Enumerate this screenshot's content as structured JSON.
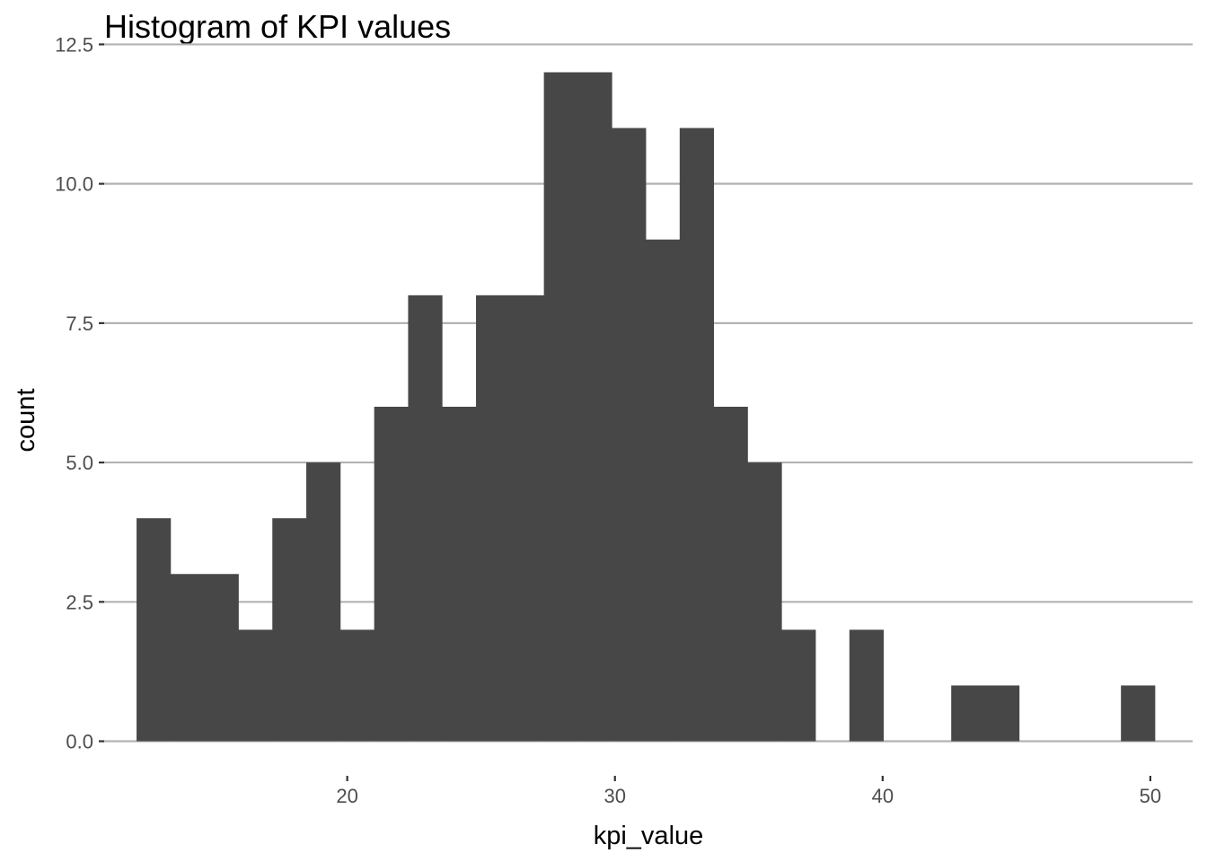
{
  "chart_data": {
    "type": "bar",
    "subtype": "histogram",
    "title": "Histogram of KPI values",
    "xlabel": "kpi_value",
    "ylabel": "count",
    "xlim": [
      10.92,
      51.58
    ],
    "ylim": [
      -0.62,
      12.62
    ],
    "x_ticks": [
      20,
      30,
      40,
      50
    ],
    "x_tick_labels": [
      "20",
      "30",
      "40",
      "50"
    ],
    "y_ticks": [
      0,
      2.5,
      5,
      7.5,
      10,
      12.5
    ],
    "y_tick_labels": [
      "0.0",
      "2.5",
      "5.0",
      "7.5",
      "10.0",
      "12.5"
    ],
    "bin_start": 12.13,
    "bin_width": 1.268,
    "counts": [
      4,
      3,
      3,
      2,
      4,
      5,
      2,
      6,
      8,
      6,
      8,
      8,
      12,
      12,
      11,
      9,
      11,
      6,
      5,
      2,
      0,
      2,
      0,
      0,
      1,
      1,
      0,
      0,
      0,
      1
    ],
    "bar_color": "#474747",
    "grid": "horizontal major",
    "legend": "none"
  }
}
